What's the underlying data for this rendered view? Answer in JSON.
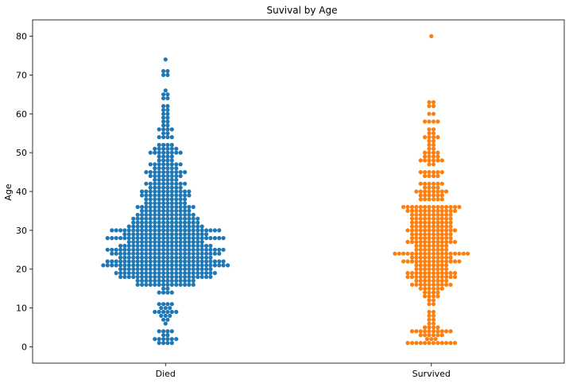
{
  "chart_data": {
    "type": "scatter",
    "subtype": "swarm",
    "title": "Suvival by Age",
    "xlabel": "",
    "ylabel": "Age",
    "ylim": [
      -4.2,
      84.2
    ],
    "yticks": [
      0,
      10,
      20,
      30,
      40,
      50,
      60,
      70,
      80
    ],
    "categories": [
      "Died",
      "Survived"
    ],
    "grid": false,
    "legend": "none",
    "series": [
      {
        "category": "Died",
        "color": "#1f77b4",
        "distribution": [
          [
            1,
            4
          ],
          [
            2,
            6
          ],
          [
            3,
            2
          ],
          [
            4,
            4
          ],
          [
            6,
            1
          ],
          [
            7,
            2
          ],
          [
            8,
            3
          ],
          [
            9,
            6
          ],
          [
            10,
            3
          ],
          [
            11,
            4
          ],
          [
            14,
            4
          ],
          [
            15,
            2
          ],
          [
            16,
            14
          ],
          [
            17,
            14
          ],
          [
            18,
            22
          ],
          [
            19,
            24
          ],
          [
            20,
            22
          ],
          [
            21,
            30
          ],
          [
            22,
            28
          ],
          [
            23,
            22
          ],
          [
            24,
            26
          ],
          [
            25,
            28
          ],
          [
            26,
            22
          ],
          [
            27,
            18
          ],
          [
            28,
            28
          ],
          [
            29,
            20
          ],
          [
            30,
            26
          ],
          [
            31,
            18
          ],
          [
            32,
            16
          ],
          [
            33,
            16
          ],
          [
            34,
            14
          ],
          [
            35,
            12
          ],
          [
            36,
            14
          ],
          [
            37,
            10
          ],
          [
            38,
            10
          ],
          [
            39,
            12
          ],
          [
            40,
            12
          ],
          [
            41,
            8
          ],
          [
            42,
            10
          ],
          [
            43,
            6
          ],
          [
            44,
            8
          ],
          [
            45,
            10
          ],
          [
            46,
            6
          ],
          [
            47,
            8
          ],
          [
            48,
            4
          ],
          [
            49,
            4
          ],
          [
            50,
            8
          ],
          [
            51,
            6
          ],
          [
            52,
            4
          ],
          [
            54,
            4
          ],
          [
            55,
            2
          ],
          [
            56,
            4
          ],
          [
            57,
            2
          ],
          [
            58,
            2
          ],
          [
            59,
            2
          ],
          [
            60,
            2
          ],
          [
            61,
            2
          ],
          [
            62,
            2
          ],
          [
            64,
            2
          ],
          [
            65,
            2
          ],
          [
            66,
            1
          ],
          [
            70,
            2
          ],
          [
            71,
            2
          ],
          [
            74,
            1
          ]
        ]
      },
      {
        "category": "Survived",
        "color": "#ff7f0e",
        "distribution": [
          [
            1,
            12
          ],
          [
            2,
            3
          ],
          [
            3,
            6
          ],
          [
            4,
            10
          ],
          [
            5,
            4
          ],
          [
            6,
            2
          ],
          [
            7,
            2
          ],
          [
            8,
            2
          ],
          [
            9,
            2
          ],
          [
            11,
            2
          ],
          [
            12,
            2
          ],
          [
            13,
            4
          ],
          [
            14,
            4
          ],
          [
            15,
            6
          ],
          [
            16,
            10
          ],
          [
            17,
            8
          ],
          [
            18,
            12
          ],
          [
            19,
            12
          ],
          [
            20,
            8
          ],
          [
            21,
            8
          ],
          [
            22,
            14
          ],
          [
            23,
            10
          ],
          [
            24,
            18
          ],
          [
            25,
            8
          ],
          [
            26,
            8
          ],
          [
            27,
            12
          ],
          [
            28,
            10
          ],
          [
            29,
            10
          ],
          [
            30,
            12
          ],
          [
            31,
            10
          ],
          [
            32,
            10
          ],
          [
            33,
            10
          ],
          [
            34,
            10
          ],
          [
            35,
            12
          ],
          [
            36,
            14
          ],
          [
            38,
            6
          ],
          [
            39,
            6
          ],
          [
            40,
            8
          ],
          [
            41,
            4
          ],
          [
            42,
            6
          ],
          [
            44,
            4
          ],
          [
            45,
            6
          ],
          [
            47,
            2
          ],
          [
            48,
            6
          ],
          [
            49,
            4
          ],
          [
            50,
            4
          ],
          [
            51,
            2
          ],
          [
            52,
            2
          ],
          [
            53,
            2
          ],
          [
            54,
            4
          ],
          [
            55,
            2
          ],
          [
            56,
            2
          ],
          [
            58,
            4
          ],
          [
            60,
            2
          ],
          [
            62,
            2
          ],
          [
            63,
            2
          ],
          [
            80,
            1
          ]
        ]
      }
    ]
  }
}
